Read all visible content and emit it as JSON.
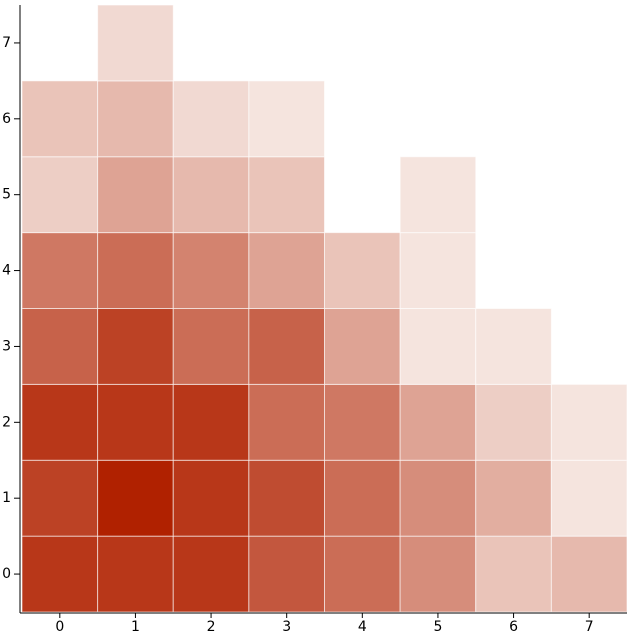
{
  "chart_data": {
    "type": "heatmap",
    "x": [
      0,
      1,
      2,
      3,
      4,
      5,
      6,
      7
    ],
    "y": [
      0,
      1,
      2,
      3,
      4,
      5,
      6,
      7
    ],
    "values": [
      [
        9,
        9,
        9,
        7.5,
        6.5,
        5,
        2.5,
        3
      ],
      [
        8.5,
        10,
        9,
        8,
        6.5,
        5,
        3.5,
        1
      ],
      [
        9,
        9,
        9,
        6.5,
        6,
        4,
        2,
        1
      ],
      [
        7,
        8.5,
        6.5,
        7,
        4,
        1,
        1,
        null
      ],
      [
        6,
        6.5,
        5.5,
        4,
        2.5,
        1,
        null,
        null
      ],
      [
        2,
        4,
        3,
        2.5,
        null,
        1,
        null,
        null
      ],
      [
        2.5,
        3,
        1.5,
        1,
        null,
        null,
        null,
        null
      ],
      [
        null,
        1.5,
        null,
        null,
        null,
        null,
        null,
        null
      ]
    ],
    "zlim": [
      1,
      10
    ],
    "colors": [
      "#f5e4de",
      "#b02100"
    ]
  }
}
